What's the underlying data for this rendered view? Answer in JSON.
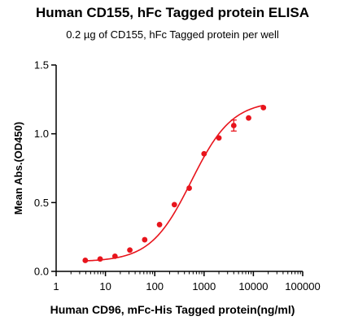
{
  "chart_data": {
    "type": "scatter",
    "title": "Human CD155, hFc Tagged protein ELISA",
    "subtitle": "0.2 µg of CD155, hFc Tagged protein per well",
    "xlabel": "Human CD96, mFc-His Tagged protein(ng/ml)",
    "ylabel": "Mean Abs.(OD450)",
    "x_scale": "log",
    "xlim": [
      1,
      100000
    ],
    "ylim": [
      0,
      1.5
    ],
    "x_ticks": [
      1,
      10,
      100,
      1000,
      10000,
      100000
    ],
    "x_tick_labels": [
      "1",
      "10",
      "100",
      "1000",
      "10000",
      "100000"
    ],
    "y_ticks": [
      0,
      0.5,
      1.0,
      1.5
    ],
    "y_tick_labels": [
      "0.0",
      "0.5",
      "1.0",
      "1.5"
    ],
    "grid": false,
    "color": "#e8141c",
    "points": [
      {
        "x": 3.9,
        "y": 0.08
      },
      {
        "x": 7.8,
        "y": 0.09
      },
      {
        "x": 15.6,
        "y": 0.11
      },
      {
        "x": 31.25,
        "y": 0.155
      },
      {
        "x": 62.5,
        "y": 0.23
      },
      {
        "x": 125,
        "y": 0.34
      },
      {
        "x": 250,
        "y": 0.485
      },
      {
        "x": 500,
        "y": 0.605
      },
      {
        "x": 1000,
        "y": 0.855
      },
      {
        "x": 2000,
        "y": 0.97
      },
      {
        "x": 4000,
        "y": 1.06,
        "err": 0.04
      },
      {
        "x": 8000,
        "y": 1.115
      },
      {
        "x": 16000,
        "y": 1.19
      }
    ],
    "fit": {
      "model": "4PL",
      "bottom": 0.07,
      "top": 1.24,
      "ec50": 550,
      "hill": 1.05
    }
  }
}
